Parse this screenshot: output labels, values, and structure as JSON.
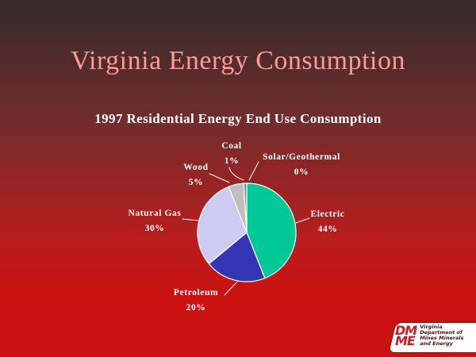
{
  "slide": {
    "title": "Virginia Energy Consumption",
    "title_color": "#FC9A9A",
    "subtitle_color": "#FFFFFF",
    "background_top_color": "#342B2B",
    "background_bottom_color": "#CC1111"
  },
  "chart_data": {
    "type": "pie",
    "title": "1997 Residential Energy End Use Consumption",
    "direction": "clockwise",
    "start_angle_deg": 0,
    "border_color": "#FFFFFF",
    "label_color": "#FFFFFF",
    "slices": [
      {
        "label": "Electric",
        "value": 44,
        "pct_label": "44%",
        "color": "#00C896"
      },
      {
        "label": "Petroleum",
        "value": 20,
        "pct_label": "20%",
        "color": "#3434B4"
      },
      {
        "label": "Natural Gas",
        "value": 30,
        "pct_label": "30%",
        "color": "#CCCCF2"
      },
      {
        "label": "Wood",
        "value": 5,
        "pct_label": "5%",
        "color": "#BFBFBF"
      },
      {
        "label": "Coal",
        "value": 1,
        "pct_label": "1%",
        "color": "#8A8A8A"
      },
      {
        "label": "Solar/Geothermal",
        "value": 0,
        "pct_label": "0%",
        "color": "#FFFFFF"
      }
    ]
  },
  "logo": {
    "acronym_line1": "DM",
    "acronym_line2": "ME",
    "accent_color": "#C81E28",
    "text_lines": [
      "Virginia",
      "Department of",
      "Mines Minerals",
      "and Energy"
    ]
  }
}
